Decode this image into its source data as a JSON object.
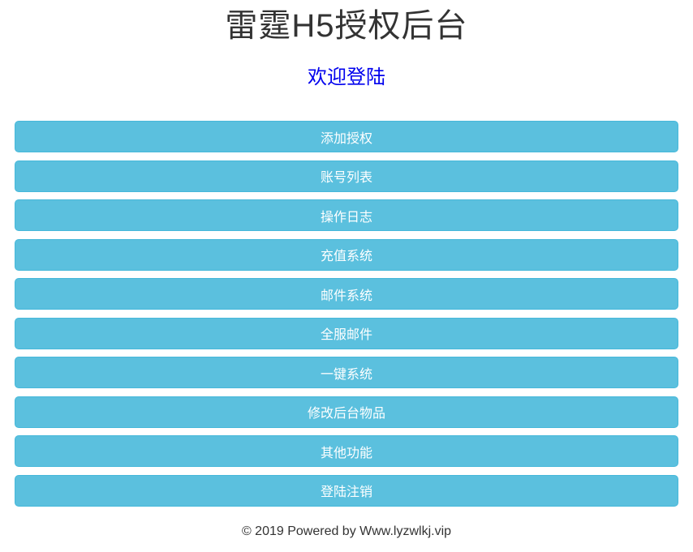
{
  "page": {
    "title": "雷霆H5授权后台",
    "welcome_link": "欢迎登陆",
    "footer": "© 2019 Powered by Www.lyzwlkj.vip"
  },
  "menu": {
    "items": [
      {
        "label": "添加授权"
      },
      {
        "label": "账号列表"
      },
      {
        "label": "操作日志"
      },
      {
        "label": "充值系统"
      },
      {
        "label": "邮件系统"
      },
      {
        "label": "全服邮件"
      },
      {
        "label": "一键系统"
      },
      {
        "label": "修改后台物品"
      },
      {
        "label": "其他功能"
      },
      {
        "label": "登陆注销"
      }
    ]
  },
  "colors": {
    "button_background": "#5bc0de",
    "button_border": "#46b8da",
    "button_text": "#ffffff",
    "title_text": "#333333",
    "welcome_link_text": "#0000ee",
    "footer_text": "#333333",
    "page_background": "#ffffff"
  }
}
